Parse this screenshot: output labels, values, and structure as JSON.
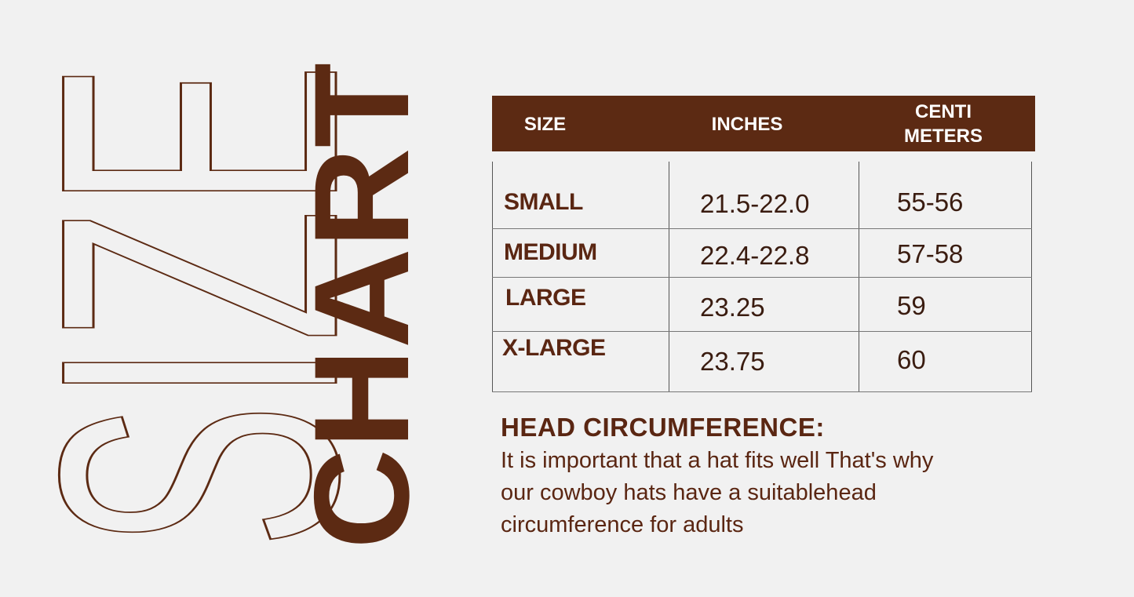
{
  "title": {
    "word1": "SIZE",
    "word2": "CHART"
  },
  "colors": {
    "brand": "#5c2a13",
    "background": "#f1f1f1"
  },
  "table": {
    "headers": {
      "size": "SIZE",
      "inches": "INCHES",
      "cm_line1": "CENTI",
      "cm_line2": "METERS"
    },
    "rows": [
      {
        "size": "SMALL",
        "inches": "21.5-22.0",
        "cm": "55-56"
      },
      {
        "size": "MEDIUM",
        "inches": "22.4-22.8",
        "cm": "57-58"
      },
      {
        "size": "LARGE",
        "inches": "23.25",
        "cm": "59"
      },
      {
        "size": "X-LARGE",
        "inches": "23.75",
        "cm": "60"
      }
    ]
  },
  "note": {
    "title": "HEAD CIRCUMFERENCE:",
    "line1": "It is important that a hat fits well That's why",
    "line2": "our cowboy hats have a suitablehead",
    "line3": "circumference for adults"
  }
}
